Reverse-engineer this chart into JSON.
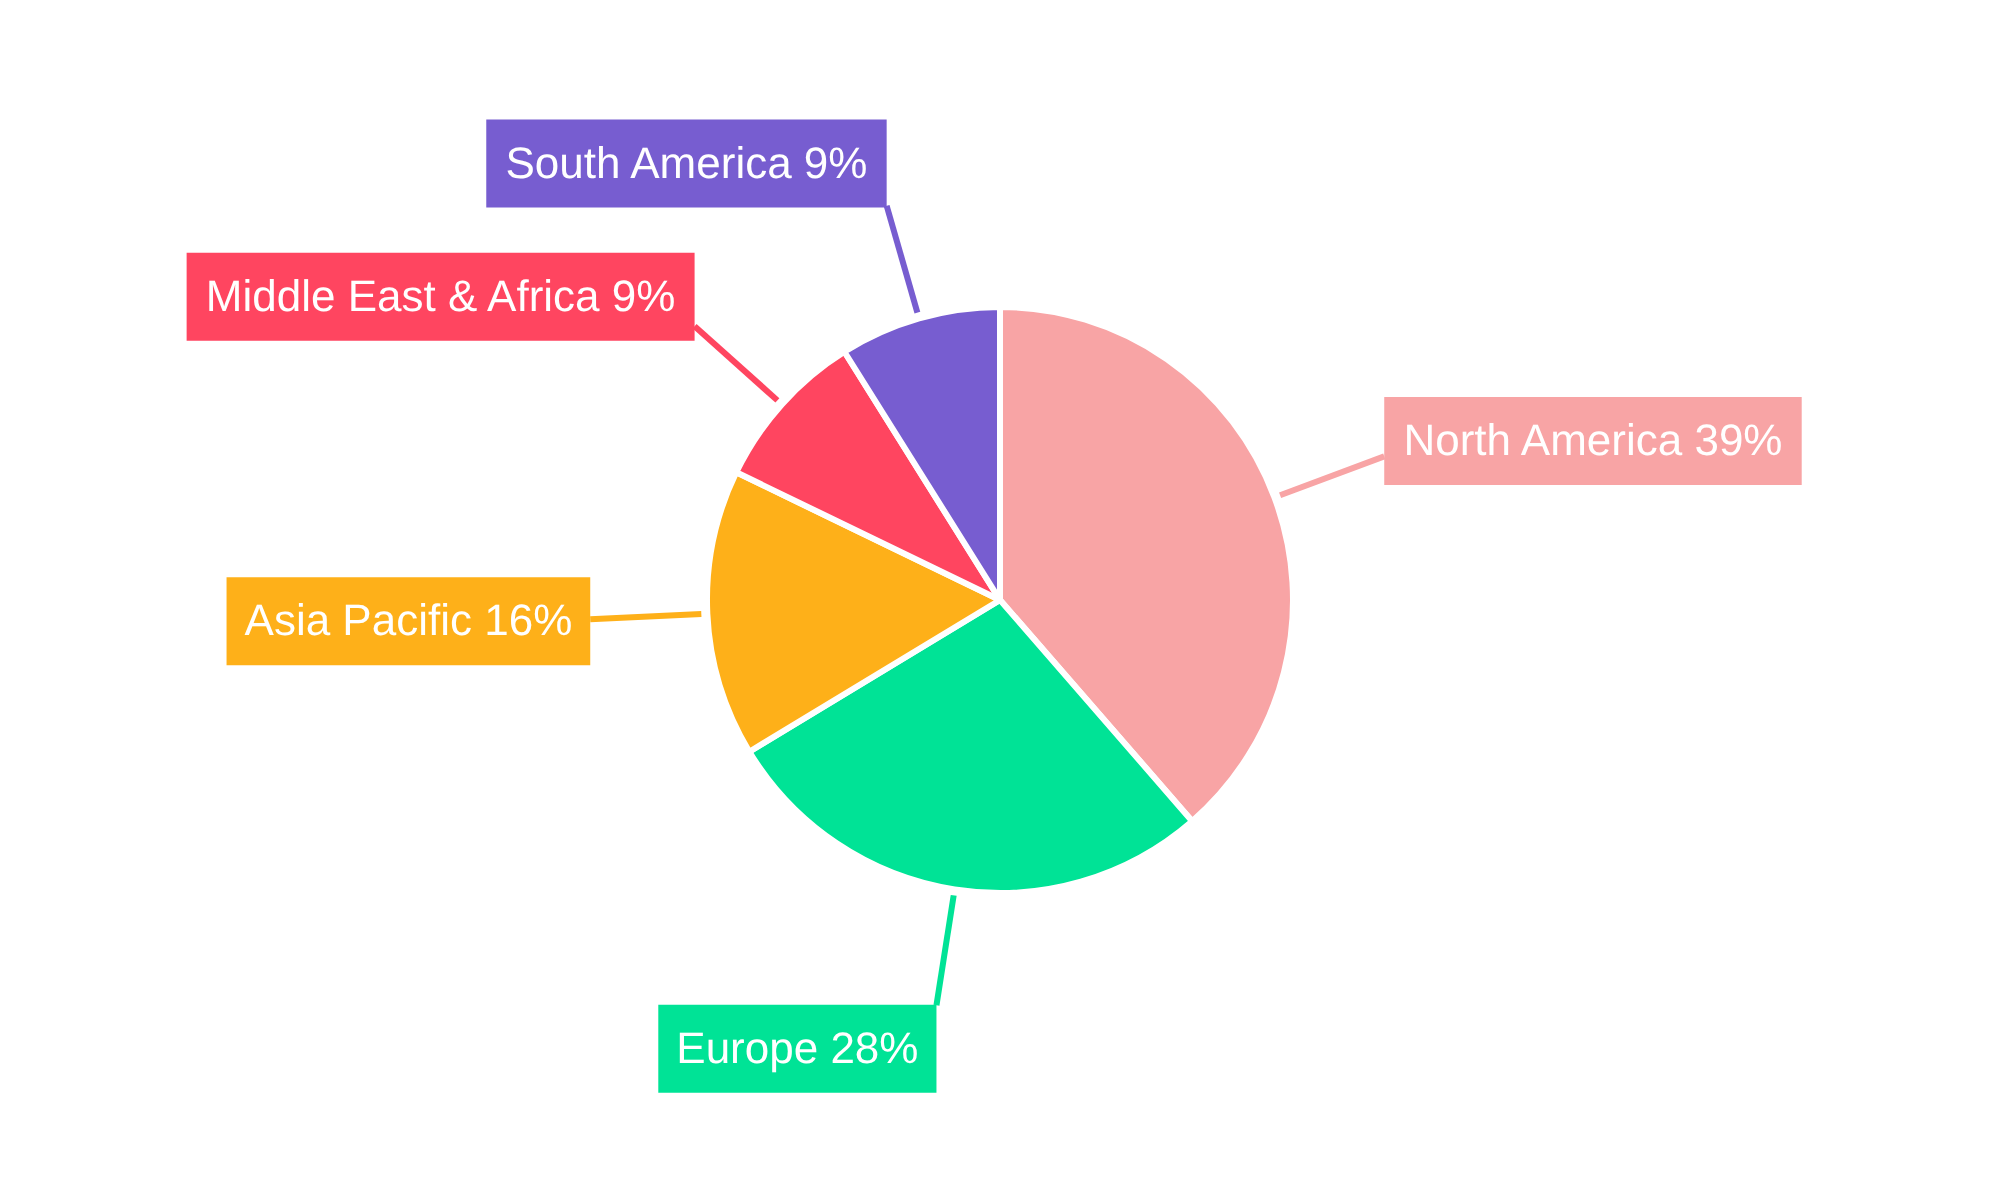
{
  "chart_data": {
    "type": "pie",
    "categories": [
      "North America",
      "Europe",
      "Asia Pacific",
      "Middle East & Africa",
      "South America"
    ],
    "values": [
      39,
      28,
      16,
      9,
      9
    ],
    "value_labels": [
      "39%",
      "28%",
      "16%",
      "9%",
      "9%"
    ],
    "colors": [
      "#f8a4a5",
      "#00e396",
      "#feb019",
      "#ff4560",
      "#775dd0"
    ]
  }
}
